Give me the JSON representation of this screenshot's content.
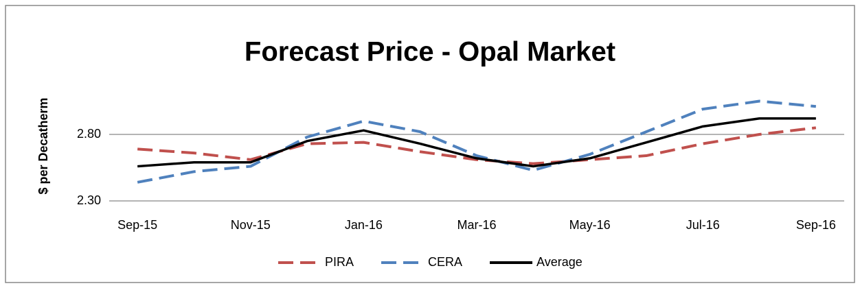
{
  "chart_data": {
    "type": "line",
    "title": "Forecast Price - Opal Market",
    "y_label": "$ per Decatherm",
    "categories": [
      "Sep-15",
      null,
      "Nov-15",
      null,
      "Jan-16",
      null,
      "Mar-16",
      null,
      "May-16",
      null,
      "Jul-16",
      null,
      "Sep-16"
    ],
    "series": [
      {
        "name": "PIRA",
        "color": "#c0504d",
        "line_style": "dashed",
        "values": [
          2.69,
          2.66,
          2.61,
          2.73,
          2.74,
          2.67,
          2.61,
          2.58,
          2.61,
          2.64,
          2.73,
          2.8,
          2.85
        ]
      },
      {
        "name": "CERA",
        "color": "#4f81bd",
        "line_style": "dashed",
        "values": [
          2.44,
          2.52,
          2.56,
          2.78,
          2.9,
          2.82,
          2.64,
          2.53,
          2.65,
          2.82,
          2.99,
          3.05,
          3.01
        ]
      },
      {
        "name": "Average",
        "color": "#000000",
        "line_style": "solid",
        "values": [
          2.56,
          2.59,
          2.59,
          2.75,
          2.83,
          2.73,
          2.62,
          2.56,
          2.62,
          2.74,
          2.86,
          2.92,
          2.92
        ]
      }
    ],
    "ylim": [
      2.3,
      3.1
    ],
    "yticks": [
      {
        "value": 2.3,
        "label": "2.30"
      },
      {
        "value": 2.8,
        "label": "2.80"
      }
    ],
    "grid": true,
    "legend": "bottom"
  }
}
